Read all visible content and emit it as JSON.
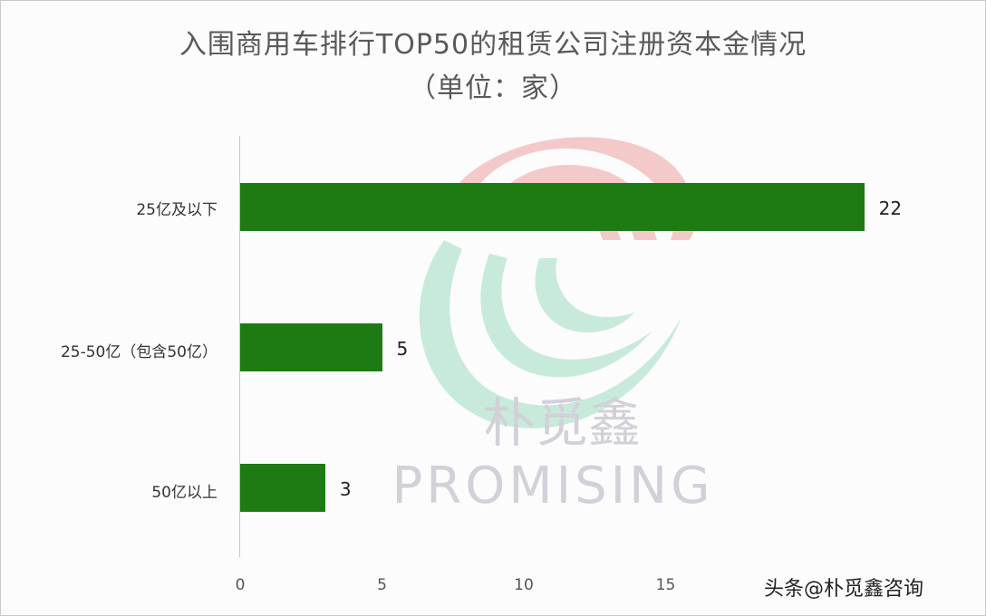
{
  "chart_data": {
    "type": "bar",
    "orientation": "horizontal",
    "title": "入围商用车排行TOP50的租赁公司注册资本金情况",
    "subtitle": "（单位：家）",
    "categories": [
      "25亿及以下",
      "25-50亿（包含50亿）",
      "50亿以上"
    ],
    "values": [
      22,
      5,
      3
    ],
    "xlabel": "",
    "ylabel": "",
    "xlim": [
      0,
      20
    ],
    "x_ticks": [
      "0",
      "5",
      "10",
      "15"
    ],
    "grid": false,
    "legend": null,
    "data_labels": [
      "22",
      "5",
      "3"
    ],
    "bar_color": "#1e7b14"
  },
  "watermark": {
    "brand_cn": "朴觅鑫",
    "brand_en": "PROMISING",
    "colors": {
      "red": "#f4c9c9",
      "green": "#c8eadb",
      "text": "#d2d0d8"
    }
  },
  "credit": "头条@朴觅鑫咨询"
}
